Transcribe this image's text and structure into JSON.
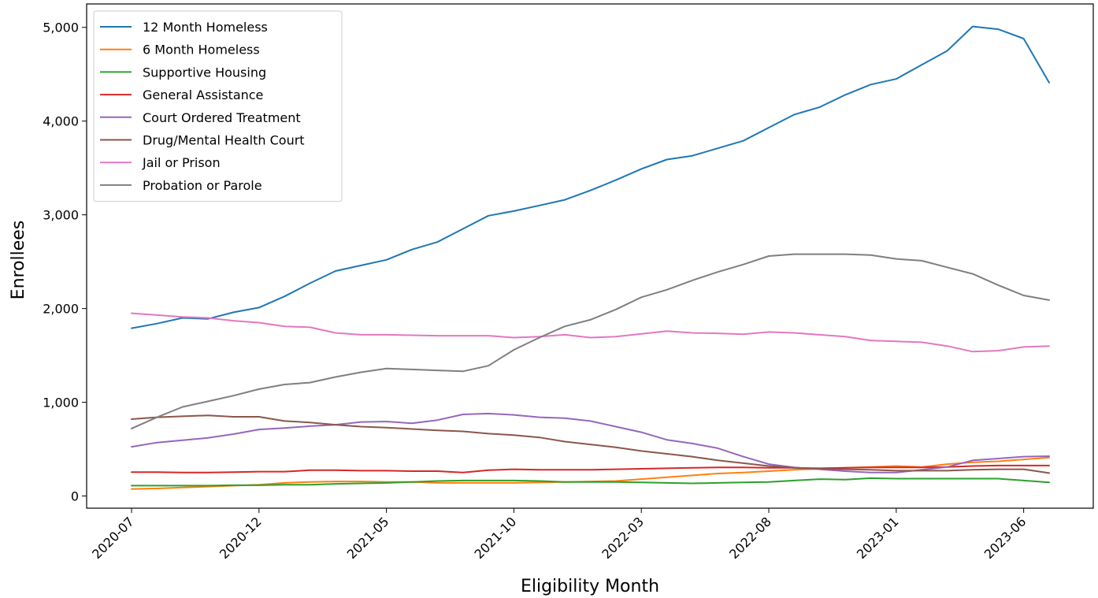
{
  "chart_data": {
    "type": "line",
    "title": "",
    "xlabel": "Eligibility Month",
    "ylabel": "Enrollees",
    "x": [
      "2020-07",
      "2020-08",
      "2020-09",
      "2020-10",
      "2020-11",
      "2020-12",
      "2021-01",
      "2021-02",
      "2021-03",
      "2021-04",
      "2021-05",
      "2021-06",
      "2021-07",
      "2021-08",
      "2021-09",
      "2021-10",
      "2021-11",
      "2021-12",
      "2022-01",
      "2022-02",
      "2022-03",
      "2022-04",
      "2022-05",
      "2022-06",
      "2022-07",
      "2022-08",
      "2022-09",
      "2022-10",
      "2022-11",
      "2022-12",
      "2023-01",
      "2023-02",
      "2023-03",
      "2023-04",
      "2023-05",
      "2023-06",
      "2023-07"
    ],
    "x_tick_labels": [
      "2020-07",
      "2020-12",
      "2021-05",
      "2021-10",
      "2022-03",
      "2022-08",
      "2023-01",
      "2023-06"
    ],
    "ylim": [
      -130,
      5250
    ],
    "y_ticks": [
      0,
      1000,
      2000,
      3000,
      4000,
      5000
    ],
    "y_tick_labels": [
      "0",
      "1,000",
      "2,000",
      "3,000",
      "4,000",
      "5,000"
    ],
    "grid": false,
    "legend_position": "upper-left",
    "series": [
      {
        "name": "12 Month Homeless",
        "color": "#1f77b4",
        "values": [
          1790,
          1840,
          1900,
          1890,
          1960,
          2010,
          2130,
          2270,
          2400,
          2460,
          2520,
          2630,
          2710,
          2850,
          2990,
          3040,
          3100,
          3160,
          3260,
          3370,
          3490,
          3590,
          3630,
          3710,
          3790,
          3930,
          4070,
          4150,
          4280,
          4390,
          4450,
          4600,
          4750,
          5010,
          4980,
          4880,
          4410
        ]
      },
      {
        "name": "6 Month Homeless",
        "color": "#ff7f0e",
        "values": [
          75,
          80,
          90,
          100,
          110,
          120,
          140,
          150,
          155,
          155,
          150,
          150,
          140,
          140,
          140,
          140,
          145,
          150,
          155,
          160,
          180,
          200,
          220,
          240,
          250,
          265,
          280,
          290,
          300,
          310,
          320,
          310,
          340,
          360,
          370,
          390,
          410
        ]
      },
      {
        "name": "Supportive Housing",
        "color": "#2ca02c",
        "values": [
          110,
          110,
          110,
          110,
          115,
          115,
          120,
          120,
          130,
          135,
          140,
          150,
          160,
          165,
          165,
          165,
          160,
          150,
          150,
          150,
          145,
          140,
          135,
          140,
          145,
          150,
          165,
          180,
          175,
          190,
          185,
          185,
          185,
          185,
          185,
          165,
          145
        ]
      },
      {
        "name": "General Assistance",
        "color": "#d62728",
        "values": [
          255,
          255,
          250,
          250,
          255,
          260,
          260,
          275,
          275,
          270,
          270,
          265,
          265,
          250,
          275,
          285,
          280,
          280,
          280,
          285,
          290,
          295,
          300,
          305,
          305,
          300,
          300,
          295,
          300,
          305,
          305,
          305,
          310,
          320,
          325,
          325,
          325
        ]
      },
      {
        "name": "Court Ordered Treatment",
        "color": "#9467bd",
        "values": [
          525,
          570,
          595,
          620,
          660,
          710,
          725,
          745,
          760,
          790,
          795,
          775,
          810,
          870,
          880,
          865,
          840,
          830,
          800,
          740,
          680,
          600,
          560,
          510,
          420,
          340,
          305,
          285,
          265,
          250,
          250,
          280,
          310,
          380,
          400,
          420,
          425
        ]
      },
      {
        "name": "Drug/Mental Health Court",
        "color": "#8c564b",
        "values": [
          820,
          840,
          850,
          860,
          845,
          845,
          800,
          785,
          760,
          740,
          730,
          715,
          700,
          690,
          665,
          650,
          625,
          580,
          550,
          520,
          480,
          450,
          420,
          380,
          350,
          320,
          300,
          290,
          285,
          280,
          270,
          270,
          270,
          280,
          285,
          285,
          245
        ]
      },
      {
        "name": "Jail or Prison",
        "color": "#e377c2",
        "values": [
          1950,
          1930,
          1910,
          1900,
          1870,
          1850,
          1810,
          1800,
          1740,
          1720,
          1720,
          1715,
          1710,
          1710,
          1710,
          1690,
          1700,
          1720,
          1690,
          1700,
          1730,
          1760,
          1740,
          1735,
          1725,
          1750,
          1740,
          1720,
          1700,
          1660,
          1650,
          1640,
          1600,
          1540,
          1550,
          1590,
          1600
        ]
      },
      {
        "name": "Probation or Parole",
        "color": "#7f7f7f",
        "values": [
          720,
          840,
          950,
          1010,
          1070,
          1140,
          1190,
          1210,
          1270,
          1320,
          1360,
          1350,
          1340,
          1330,
          1390,
          1560,
          1690,
          1810,
          1880,
          1990,
          2120,
          2200,
          2300,
          2390,
          2470,
          2560,
          2580,
          2580,
          2580,
          2570,
          2530,
          2510,
          2440,
          2370,
          2250,
          2140,
          2090
        ]
      }
    ]
  }
}
